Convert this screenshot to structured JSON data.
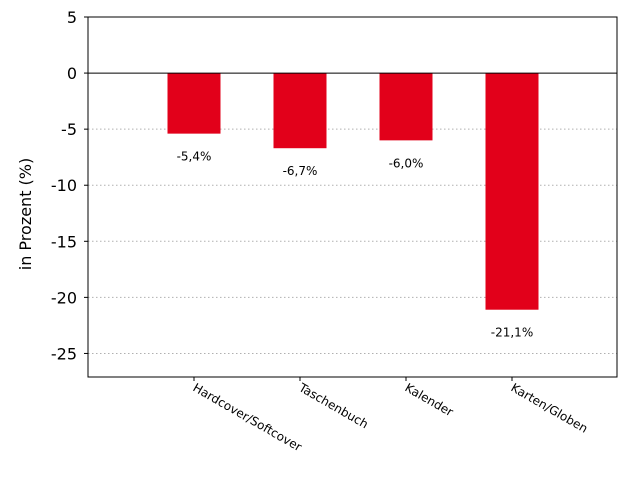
{
  "chart_data": {
    "type": "bar",
    "categories": [
      "Hardcover/Softcover",
      "Taschenbuch",
      "Kalender",
      "Karten/Globen"
    ],
    "values": [
      -5.4,
      -6.7,
      -6.0,
      -21.1
    ],
    "data_labels": [
      "-5,4%",
      "-6,7%",
      "-6,0%",
      "-21,1%"
    ],
    "title": "",
    "xlabel": "",
    "ylabel": "in Prozent (%)",
    "ylim": [
      -27.1,
      5
    ],
    "yticks": [
      5,
      0,
      -5,
      -10,
      -15,
      -20,
      -25
    ],
    "grid": true,
    "legend": "none",
    "bar_color": "#e2001a",
    "grid_color": "#b0b0b0"
  }
}
